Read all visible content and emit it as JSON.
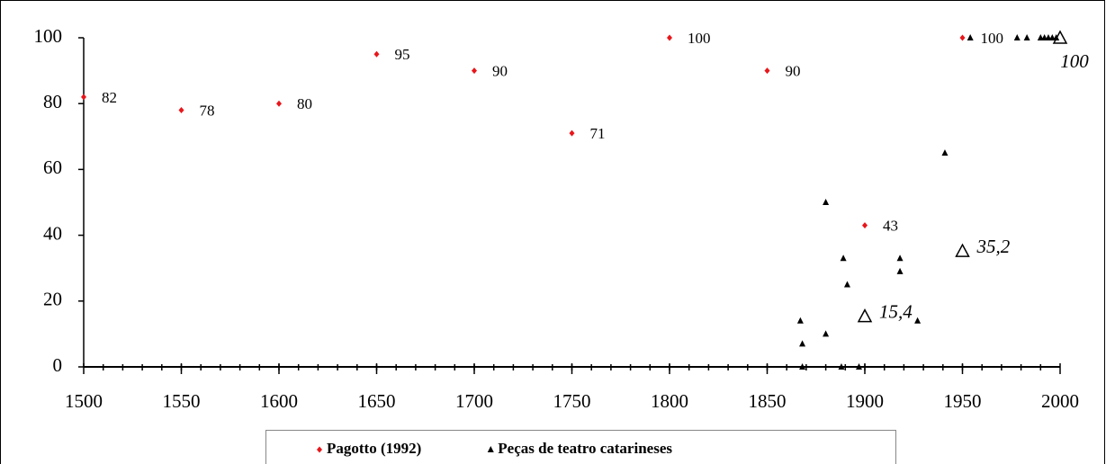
{
  "chart_data": {
    "type": "scatter",
    "xlim": [
      1500,
      2000
    ],
    "xticks": [
      1500,
      1550,
      1600,
      1650,
      1700,
      1750,
      1800,
      1850,
      1900,
      1950,
      2000
    ],
    "xminor_step": 10,
    "ylim": [
      0,
      100
    ],
    "yticks": [
      0,
      20,
      40,
      60,
      80,
      100
    ],
    "legend": "bottom",
    "series": [
      {
        "name": "Pagotto (1992)",
        "color": "#e8161b",
        "marker": "diamond",
        "data_labels": true,
        "x": [
          1500,
          1550,
          1600,
          1650,
          1700,
          1750,
          1800,
          1850,
          1900,
          1950
        ],
        "values": [
          82,
          78,
          80,
          95,
          90,
          71,
          100,
          90,
          43,
          100
        ]
      },
      {
        "name": "Peças de teatro catarineses",
        "color": "#000000",
        "marker": "triangle",
        "x": [
          1867,
          1868,
          1868,
          1880,
          1880,
          1889,
          1888,
          1891,
          1897,
          1918,
          1918,
          1927,
          1941,
          1954,
          1978,
          1983,
          1990,
          1992,
          1994,
          1996,
          1998
        ],
        "values": [
          14,
          7,
          0,
          50,
          10,
          33,
          0,
          25,
          0,
          33,
          29,
          14,
          65,
          100,
          100,
          100,
          100,
          100,
          100,
          100,
          100
        ]
      },
      {
        "color": "#000000",
        "marker": "open-triangle",
        "x": [
          1900,
          1950,
          2000
        ],
        "values": [
          15.4,
          35.2,
          100
        ],
        "value_labels": [
          "15,4",
          "35,2",
          "100"
        ]
      }
    ]
  }
}
